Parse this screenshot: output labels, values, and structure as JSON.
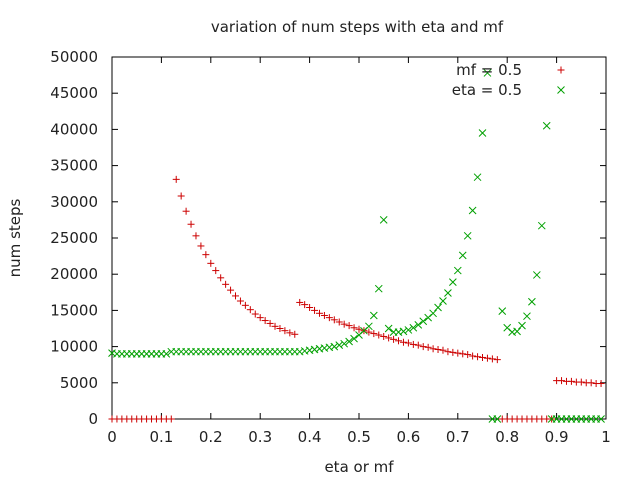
{
  "chart_data": {
    "type": "scatter",
    "title": "variation of num steps with eta and mf",
    "xlabel": "eta or mf",
    "ylabel": "num steps",
    "xlim": [
      0,
      1
    ],
    "ylim": [
      0,
      50000
    ],
    "x_ticks": [
      "0",
      "0.1",
      "0.2",
      "0.3",
      "0.4",
      "0.5",
      "0.6",
      "0.7",
      "0.8",
      "0.9",
      "1"
    ],
    "y_ticks": [
      "0",
      "5000",
      "10000",
      "15000",
      "20000",
      "25000",
      "30000",
      "35000",
      "40000",
      "45000",
      "50000"
    ],
    "legend_position": "top-right",
    "grid": false,
    "series": [
      {
        "name": "mf = 0.5",
        "marker": "plus",
        "color": "#cc0000",
        "points": [
          [
            0.0,
            0
          ],
          [
            0.01,
            0
          ],
          [
            0.02,
            0
          ],
          [
            0.03,
            0
          ],
          [
            0.04,
            0
          ],
          [
            0.05,
            0
          ],
          [
            0.06,
            0
          ],
          [
            0.07,
            0
          ],
          [
            0.08,
            0
          ],
          [
            0.09,
            0
          ],
          [
            0.1,
            0
          ],
          [
            0.11,
            0
          ],
          [
            0.12,
            0
          ],
          [
            0.13,
            33100
          ],
          [
            0.14,
            30800
          ],
          [
            0.15,
            28700
          ],
          [
            0.16,
            26900
          ],
          [
            0.17,
            25300
          ],
          [
            0.18,
            23900
          ],
          [
            0.19,
            22700
          ],
          [
            0.2,
            21500
          ],
          [
            0.21,
            20500
          ],
          [
            0.22,
            19500
          ],
          [
            0.23,
            18600
          ],
          [
            0.24,
            17800
          ],
          [
            0.25,
            17000
          ],
          [
            0.26,
            16300
          ],
          [
            0.27,
            15700
          ],
          [
            0.28,
            15100
          ],
          [
            0.29,
            14500
          ],
          [
            0.3,
            14000
          ],
          [
            0.31,
            13600
          ],
          [
            0.32,
            13200
          ],
          [
            0.33,
            12800
          ],
          [
            0.34,
            12500
          ],
          [
            0.35,
            12200
          ],
          [
            0.36,
            11900
          ],
          [
            0.37,
            11700
          ],
          [
            0.38,
            16100
          ],
          [
            0.39,
            15800
          ],
          [
            0.4,
            15400
          ],
          [
            0.41,
            15000
          ],
          [
            0.42,
            14600
          ],
          [
            0.43,
            14300
          ],
          [
            0.44,
            14000
          ],
          [
            0.45,
            13700
          ],
          [
            0.46,
            13400
          ],
          [
            0.47,
            13100
          ],
          [
            0.48,
            12900
          ],
          [
            0.49,
            12600
          ],
          [
            0.5,
            12400
          ],
          [
            0.51,
            12200
          ],
          [
            0.52,
            12000
          ],
          [
            0.53,
            11800
          ],
          [
            0.54,
            11600
          ],
          [
            0.55,
            11400
          ],
          [
            0.56,
            11200
          ],
          [
            0.57,
            11000
          ],
          [
            0.58,
            10800
          ],
          [
            0.59,
            10600
          ],
          [
            0.6,
            10500
          ],
          [
            0.61,
            10300
          ],
          [
            0.62,
            10200
          ],
          [
            0.63,
            10000
          ],
          [
            0.64,
            9900
          ],
          [
            0.65,
            9700
          ],
          [
            0.66,
            9600
          ],
          [
            0.67,
            9500
          ],
          [
            0.68,
            9300
          ],
          [
            0.69,
            9200
          ],
          [
            0.7,
            9100
          ],
          [
            0.71,
            9000
          ],
          [
            0.72,
            8900
          ],
          [
            0.73,
            8700
          ],
          [
            0.74,
            8600
          ],
          [
            0.75,
            8500
          ],
          [
            0.76,
            8400
          ],
          [
            0.77,
            8300
          ],
          [
            0.78,
            8200
          ],
          [
            0.79,
            0
          ],
          [
            0.8,
            0
          ],
          [
            0.81,
            0
          ],
          [
            0.82,
            0
          ],
          [
            0.83,
            0
          ],
          [
            0.84,
            0
          ],
          [
            0.85,
            0
          ],
          [
            0.86,
            0
          ],
          [
            0.87,
            0
          ],
          [
            0.88,
            0
          ],
          [
            0.89,
            0
          ],
          [
            0.9,
            5300
          ],
          [
            0.91,
            5300
          ],
          [
            0.92,
            5200
          ],
          [
            0.93,
            5200
          ],
          [
            0.94,
            5100
          ],
          [
            0.95,
            5100
          ],
          [
            0.96,
            5000
          ],
          [
            0.97,
            5000
          ],
          [
            0.98,
            4900
          ],
          [
            0.99,
            4900
          ]
        ]
      },
      {
        "name": "eta = 0.5",
        "marker": "cross",
        "color": "#00a000",
        "points": [
          [
            0.0,
            9100
          ],
          [
            0.01,
            9000
          ],
          [
            0.02,
            9000
          ],
          [
            0.03,
            9000
          ],
          [
            0.04,
            9000
          ],
          [
            0.05,
            9000
          ],
          [
            0.06,
            9000
          ],
          [
            0.07,
            9000
          ],
          [
            0.08,
            9000
          ],
          [
            0.09,
            9000
          ],
          [
            0.1,
            9000
          ],
          [
            0.11,
            9000
          ],
          [
            0.12,
            9300
          ],
          [
            0.13,
            9300
          ],
          [
            0.14,
            9300
          ],
          [
            0.15,
            9300
          ],
          [
            0.16,
            9300
          ],
          [
            0.17,
            9300
          ],
          [
            0.18,
            9300
          ],
          [
            0.19,
            9300
          ],
          [
            0.2,
            9300
          ],
          [
            0.21,
            9300
          ],
          [
            0.22,
            9300
          ],
          [
            0.23,
            9300
          ],
          [
            0.24,
            9300
          ],
          [
            0.25,
            9300
          ],
          [
            0.26,
            9300
          ],
          [
            0.27,
            9300
          ],
          [
            0.28,
            9300
          ],
          [
            0.29,
            9300
          ],
          [
            0.3,
            9300
          ],
          [
            0.31,
            9300
          ],
          [
            0.32,
            9300
          ],
          [
            0.33,
            9300
          ],
          [
            0.34,
            9300
          ],
          [
            0.35,
            9300
          ],
          [
            0.36,
            9300
          ],
          [
            0.37,
            9300
          ],
          [
            0.38,
            9300
          ],
          [
            0.39,
            9400
          ],
          [
            0.4,
            9500
          ],
          [
            0.41,
            9600
          ],
          [
            0.42,
            9700
          ],
          [
            0.43,
            9800
          ],
          [
            0.44,
            9900
          ],
          [
            0.45,
            10000
          ],
          [
            0.46,
            10200
          ],
          [
            0.47,
            10400
          ],
          [
            0.48,
            10700
          ],
          [
            0.49,
            11100
          ],
          [
            0.5,
            11600
          ],
          [
            0.51,
            12200
          ],
          [
            0.52,
            12800
          ],
          [
            0.53,
            14300
          ],
          [
            0.54,
            18000
          ],
          [
            0.55,
            27500
          ],
          [
            0.56,
            12500
          ],
          [
            0.57,
            12000
          ],
          [
            0.58,
            12000
          ],
          [
            0.59,
            12100
          ],
          [
            0.6,
            12300
          ],
          [
            0.61,
            12600
          ],
          [
            0.62,
            13000
          ],
          [
            0.63,
            13500
          ],
          [
            0.64,
            14000
          ],
          [
            0.65,
            14600
          ],
          [
            0.66,
            15400
          ],
          [
            0.67,
            16300
          ],
          [
            0.68,
            17400
          ],
          [
            0.69,
            18900
          ],
          [
            0.7,
            20500
          ],
          [
            0.71,
            22600
          ],
          [
            0.72,
            25300
          ],
          [
            0.73,
            28800
          ],
          [
            0.74,
            33400
          ],
          [
            0.75,
            39500
          ],
          [
            0.76,
            47800
          ],
          [
            0.77,
            0
          ],
          [
            0.78,
            0
          ],
          [
            0.79,
            14900
          ],
          [
            0.8,
            12600
          ],
          [
            0.81,
            12000
          ],
          [
            0.82,
            12100
          ],
          [
            0.83,
            12900
          ],
          [
            0.84,
            14200
          ],
          [
            0.85,
            16200
          ],
          [
            0.86,
            19900
          ],
          [
            0.87,
            26700
          ],
          [
            0.88,
            40500
          ],
          [
            0.89,
            0
          ],
          [
            0.9,
            0
          ],
          [
            0.91,
            0
          ],
          [
            0.92,
            0
          ],
          [
            0.93,
            0
          ],
          [
            0.94,
            0
          ],
          [
            0.95,
            0
          ],
          [
            0.96,
            0
          ],
          [
            0.97,
            0
          ],
          [
            0.98,
            0
          ],
          [
            0.99,
            0
          ]
        ]
      }
    ]
  }
}
